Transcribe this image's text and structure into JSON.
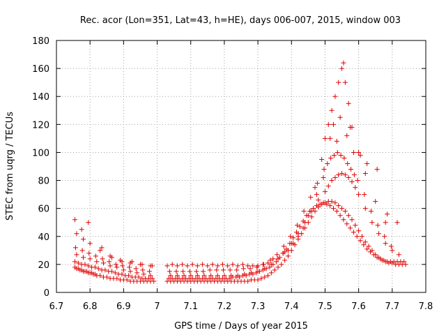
{
  "chart_data": {
    "type": "scatter",
    "title": "Rec. acor (Lon=351, Lat=43, h=HE), days 006-007, 2015, window 003",
    "xlabel": "GPS time / Days of year 2015",
    "ylabel": "STEC from uqrg / TECUs",
    "xlim": [
      6.7,
      7.8
    ],
    "ylim": [
      0,
      180
    ],
    "xticks": [
      "6.7",
      "6.8",
      "6.9",
      "7",
      "7.1",
      "7.2",
      "7.3",
      "7.4",
      "7.5",
      "7.6",
      "7.7",
      "7.8"
    ],
    "yticks": [
      "0",
      "20",
      "40",
      "60",
      "80",
      "100",
      "120",
      "140",
      "160",
      "180"
    ],
    "grid": true,
    "marker": "plus",
    "color": "#e00000",
    "series": [
      {
        "x": [
          6.755,
          6.76,
          6.765,
          6.77,
          6.775,
          6.78,
          6.785,
          6.79,
          6.795,
          6.8,
          6.805,
          6.81,
          6.815,
          6.82,
          6.83,
          6.84,
          6.85,
          6.86,
          6.87,
          6.88,
          6.89,
          6.9,
          6.91,
          6.92,
          6.93,
          6.94,
          6.95,
          6.96,
          6.97,
          6.98,
          6.99,
          7.03,
          7.04,
          7.05,
          7.06,
          7.07,
          7.08,
          7.09,
          7.1,
          7.11,
          7.12,
          7.13,
          7.14,
          7.15,
          7.16,
          7.17,
          7.18,
          7.19,
          7.2,
          7.21,
          7.22,
          7.23,
          7.24,
          7.25,
          7.26,
          7.27,
          7.28,
          7.29,
          7.3,
          7.31,
          7.32,
          7.33,
          7.34,
          7.35,
          7.36,
          7.37,
          7.38,
          7.39,
          7.4,
          7.41,
          7.42,
          7.43,
          7.44,
          7.45,
          7.46,
          7.47,
          7.48,
          7.49,
          7.5,
          7.51,
          7.52,
          7.53,
          7.54,
          7.55,
          7.56,
          7.57,
          7.58,
          7.59,
          7.6,
          7.61,
          7.62,
          7.63,
          7.64,
          7.65,
          7.66,
          7.67,
          7.68,
          7.69,
          7.7,
          7.71,
          7.72,
          7.73,
          7.74
        ],
        "y": [
          18,
          17,
          17,
          16,
          16,
          15,
          15,
          15,
          14,
          14,
          14,
          13,
          13,
          12,
          12,
          11,
          11,
          10,
          10,
          10,
          9,
          9,
          9,
          8,
          8,
          8,
          8,
          8,
          8,
          8,
          8,
          8,
          8,
          8,
          8,
          8,
          8,
          8,
          8,
          8,
          8,
          8,
          8,
          8,
          8,
          8,
          8,
          8,
          8,
          8,
          8,
          8,
          8,
          8,
          8,
          8,
          9,
          9,
          9,
          10,
          11,
          12,
          14,
          16,
          18,
          20,
          23,
          26,
          30,
          34,
          38,
          42,
          46,
          50,
          54,
          58,
          61,
          63,
          64,
          65,
          65,
          64,
          62,
          60,
          58,
          55,
          52,
          48,
          44,
          40,
          36,
          33,
          30,
          27,
          25,
          23,
          22,
          21,
          21,
          20,
          20,
          20,
          20
        ]
      },
      {
        "x": [
          6.755,
          6.765,
          6.775,
          6.785,
          6.795,
          6.805,
          6.815,
          6.825,
          6.835,
          6.845,
          6.855,
          6.865,
          6.875,
          6.885,
          6.895,
          6.905,
          6.915,
          6.925,
          6.935,
          6.945,
          6.955,
          6.965,
          6.975,
          6.985,
          7.035,
          7.045,
          7.055,
          7.065,
          7.075,
          7.085,
          7.095,
          7.105,
          7.115,
          7.125,
          7.135,
          7.145,
          7.155,
          7.165,
          7.175,
          7.185,
          7.195,
          7.205,
          7.215,
          7.225,
          7.235,
          7.245,
          7.255,
          7.265,
          7.275,
          7.285,
          7.295,
          7.305,
          7.315,
          7.325,
          7.335,
          7.345,
          7.355,
          7.365,
          7.375,
          7.385,
          7.395,
          7.405,
          7.415,
          7.425,
          7.435,
          7.445,
          7.455,
          7.465,
          7.475,
          7.485,
          7.495,
          7.505,
          7.515,
          7.525,
          7.535,
          7.545,
          7.555,
          7.565,
          7.575,
          7.585,
          7.595,
          7.605,
          7.615,
          7.625,
          7.635,
          7.645,
          7.655,
          7.665,
          7.675,
          7.685,
          7.695,
          7.705,
          7.715,
          7.725,
          7.735
        ],
        "y": [
          22,
          21,
          20,
          20,
          19,
          18,
          18,
          17,
          16,
          16,
          15,
          15,
          14,
          13,
          13,
          12,
          12,
          11,
          11,
          11,
          10,
          10,
          10,
          10,
          10,
          10,
          10,
          10,
          10,
          10,
          10,
          10,
          10,
          10,
          10,
          10,
          10,
          10,
          10,
          10,
          10,
          10,
          10,
          11,
          11,
          11,
          12,
          12,
          13,
          13,
          14,
          15,
          16,
          17,
          18,
          20,
          22,
          25,
          28,
          31,
          35,
          39,
          43,
          47,
          51,
          55,
          58,
          60,
          62,
          63,
          64,
          63,
          62,
          60,
          58,
          55,
          52,
          49,
          46,
          43,
          40,
          37,
          34,
          31,
          29,
          27,
          25,
          24,
          23,
          22,
          22,
          22,
          22,
          22,
          22
        ]
      },
      {
        "x": [
          6.76,
          6.78,
          6.8,
          6.82,
          6.84,
          6.86,
          6.88,
          6.9,
          6.92,
          6.94,
          6.96,
          6.98,
          7.04,
          7.06,
          7.08,
          7.1,
          7.12,
          7.14,
          7.16,
          7.18,
          7.2,
          7.22,
          7.24,
          7.26,
          7.28,
          7.3,
          7.32,
          7.34,
          7.36,
          7.38,
          7.4,
          7.42,
          7.44,
          7.46,
          7.48,
          7.5,
          7.51,
          7.52,
          7.53,
          7.54,
          7.55,
          7.56,
          7.57,
          7.58,
          7.59,
          7.6,
          7.62,
          7.64,
          7.66,
          7.68,
          7.7,
          7.72
        ],
        "y": [
          27,
          25,
          24,
          22,
          21,
          19,
          18,
          16,
          15,
          14,
          13,
          12,
          12,
          12,
          12,
          12,
          12,
          12,
          12,
          12,
          12,
          12,
          12,
          13,
          14,
          15,
          17,
          20,
          24,
          29,
          35,
          42,
          50,
          58,
          66,
          72,
          76,
          80,
          82,
          84,
          85,
          84,
          82,
          79,
          75,
          70,
          60,
          50,
          42,
          35,
          30,
          27
        ]
      },
      {
        "x": [
          6.757,
          6.777,
          6.797,
          6.817,
          6.837,
          6.857,
          6.877,
          6.897,
          6.917,
          6.937,
          6.957,
          6.977,
          7.037,
          7.057,
          7.077,
          7.097,
          7.117,
          7.137,
          7.157,
          7.177,
          7.197,
          7.217,
          7.237,
          7.257,
          7.277,
          7.297,
          7.317,
          7.337,
          7.357,
          7.377,
          7.397,
          7.417,
          7.437,
          7.457,
          7.477,
          7.497,
          7.507,
          7.517,
          7.527,
          7.537,
          7.547,
          7.557,
          7.567,
          7.577,
          7.587,
          7.597,
          7.617,
          7.637,
          7.657,
          7.677,
          7.697
        ],
        "y": [
          32,
          30,
          28,
          26,
          24,
          22,
          20,
          19,
          18,
          17,
          16,
          15,
          15,
          15,
          15,
          15,
          15,
          15,
          16,
          16,
          16,
          16,
          16,
          17,
          17,
          18,
          20,
          23,
          27,
          33,
          40,
          48,
          58,
          68,
          78,
          88,
          92,
          96,
          98,
          100,
          98,
          96,
          92,
          88,
          84,
          80,
          70,
          58,
          48,
          40,
          33
        ]
      },
      {
        "x": [
          6.76,
          6.78,
          6.8,
          6.83,
          6.86,
          6.89,
          6.92,
          6.95,
          6.98,
          7.03,
          7.06,
          7.09,
          7.12,
          7.15,
          7.18,
          7.21,
          7.24,
          7.27,
          7.3,
          7.33,
          7.36,
          7.39,
          7.42,
          7.45,
          7.47,
          7.49,
          7.5,
          7.51,
          7.52,
          7.53,
          7.54,
          7.55,
          7.56,
          7.57,
          7.58,
          7.6,
          7.62,
          7.65,
          7.68
        ],
        "y": [
          42,
          38,
          35,
          30,
          26,
          23,
          21,
          20,
          19,
          19,
          19,
          19,
          19,
          19,
          19,
          19,
          19,
          19,
          19,
          21,
          24,
          30,
          40,
          55,
          75,
          95,
          110,
          120,
          130,
          140,
          150,
          160,
          150,
          135,
          118,
          100,
          85,
          65,
          50
        ]
      },
      {
        "x": [
          6.755,
          6.775,
          6.795,
          6.835,
          6.865,
          6.895,
          6.925,
          6.955,
          6.985,
          7.045,
          7.075,
          7.105,
          7.135,
          7.165,
          7.195,
          7.225,
          7.255,
          7.285,
          7.315,
          7.345,
          7.375,
          7.405,
          7.435,
          7.455,
          7.475,
          7.495,
          7.515,
          7.525,
          7.535,
          7.545,
          7.555,
          7.565,
          7.575,
          7.585,
          7.605,
          7.625,
          7.655,
          7.685,
          7.715
        ],
        "y": [
          52,
          45,
          50,
          32,
          25,
          22,
          22,
          20,
          19,
          20,
          20,
          20,
          20,
          20,
          20,
          20,
          20,
          19,
          20,
          24,
          28,
          35,
          46,
          58,
          70,
          82,
          110,
          120,
          108,
          125,
          164,
          112,
          118,
          100,
          98,
          92,
          88,
          56,
          50
        ]
      }
    ]
  }
}
